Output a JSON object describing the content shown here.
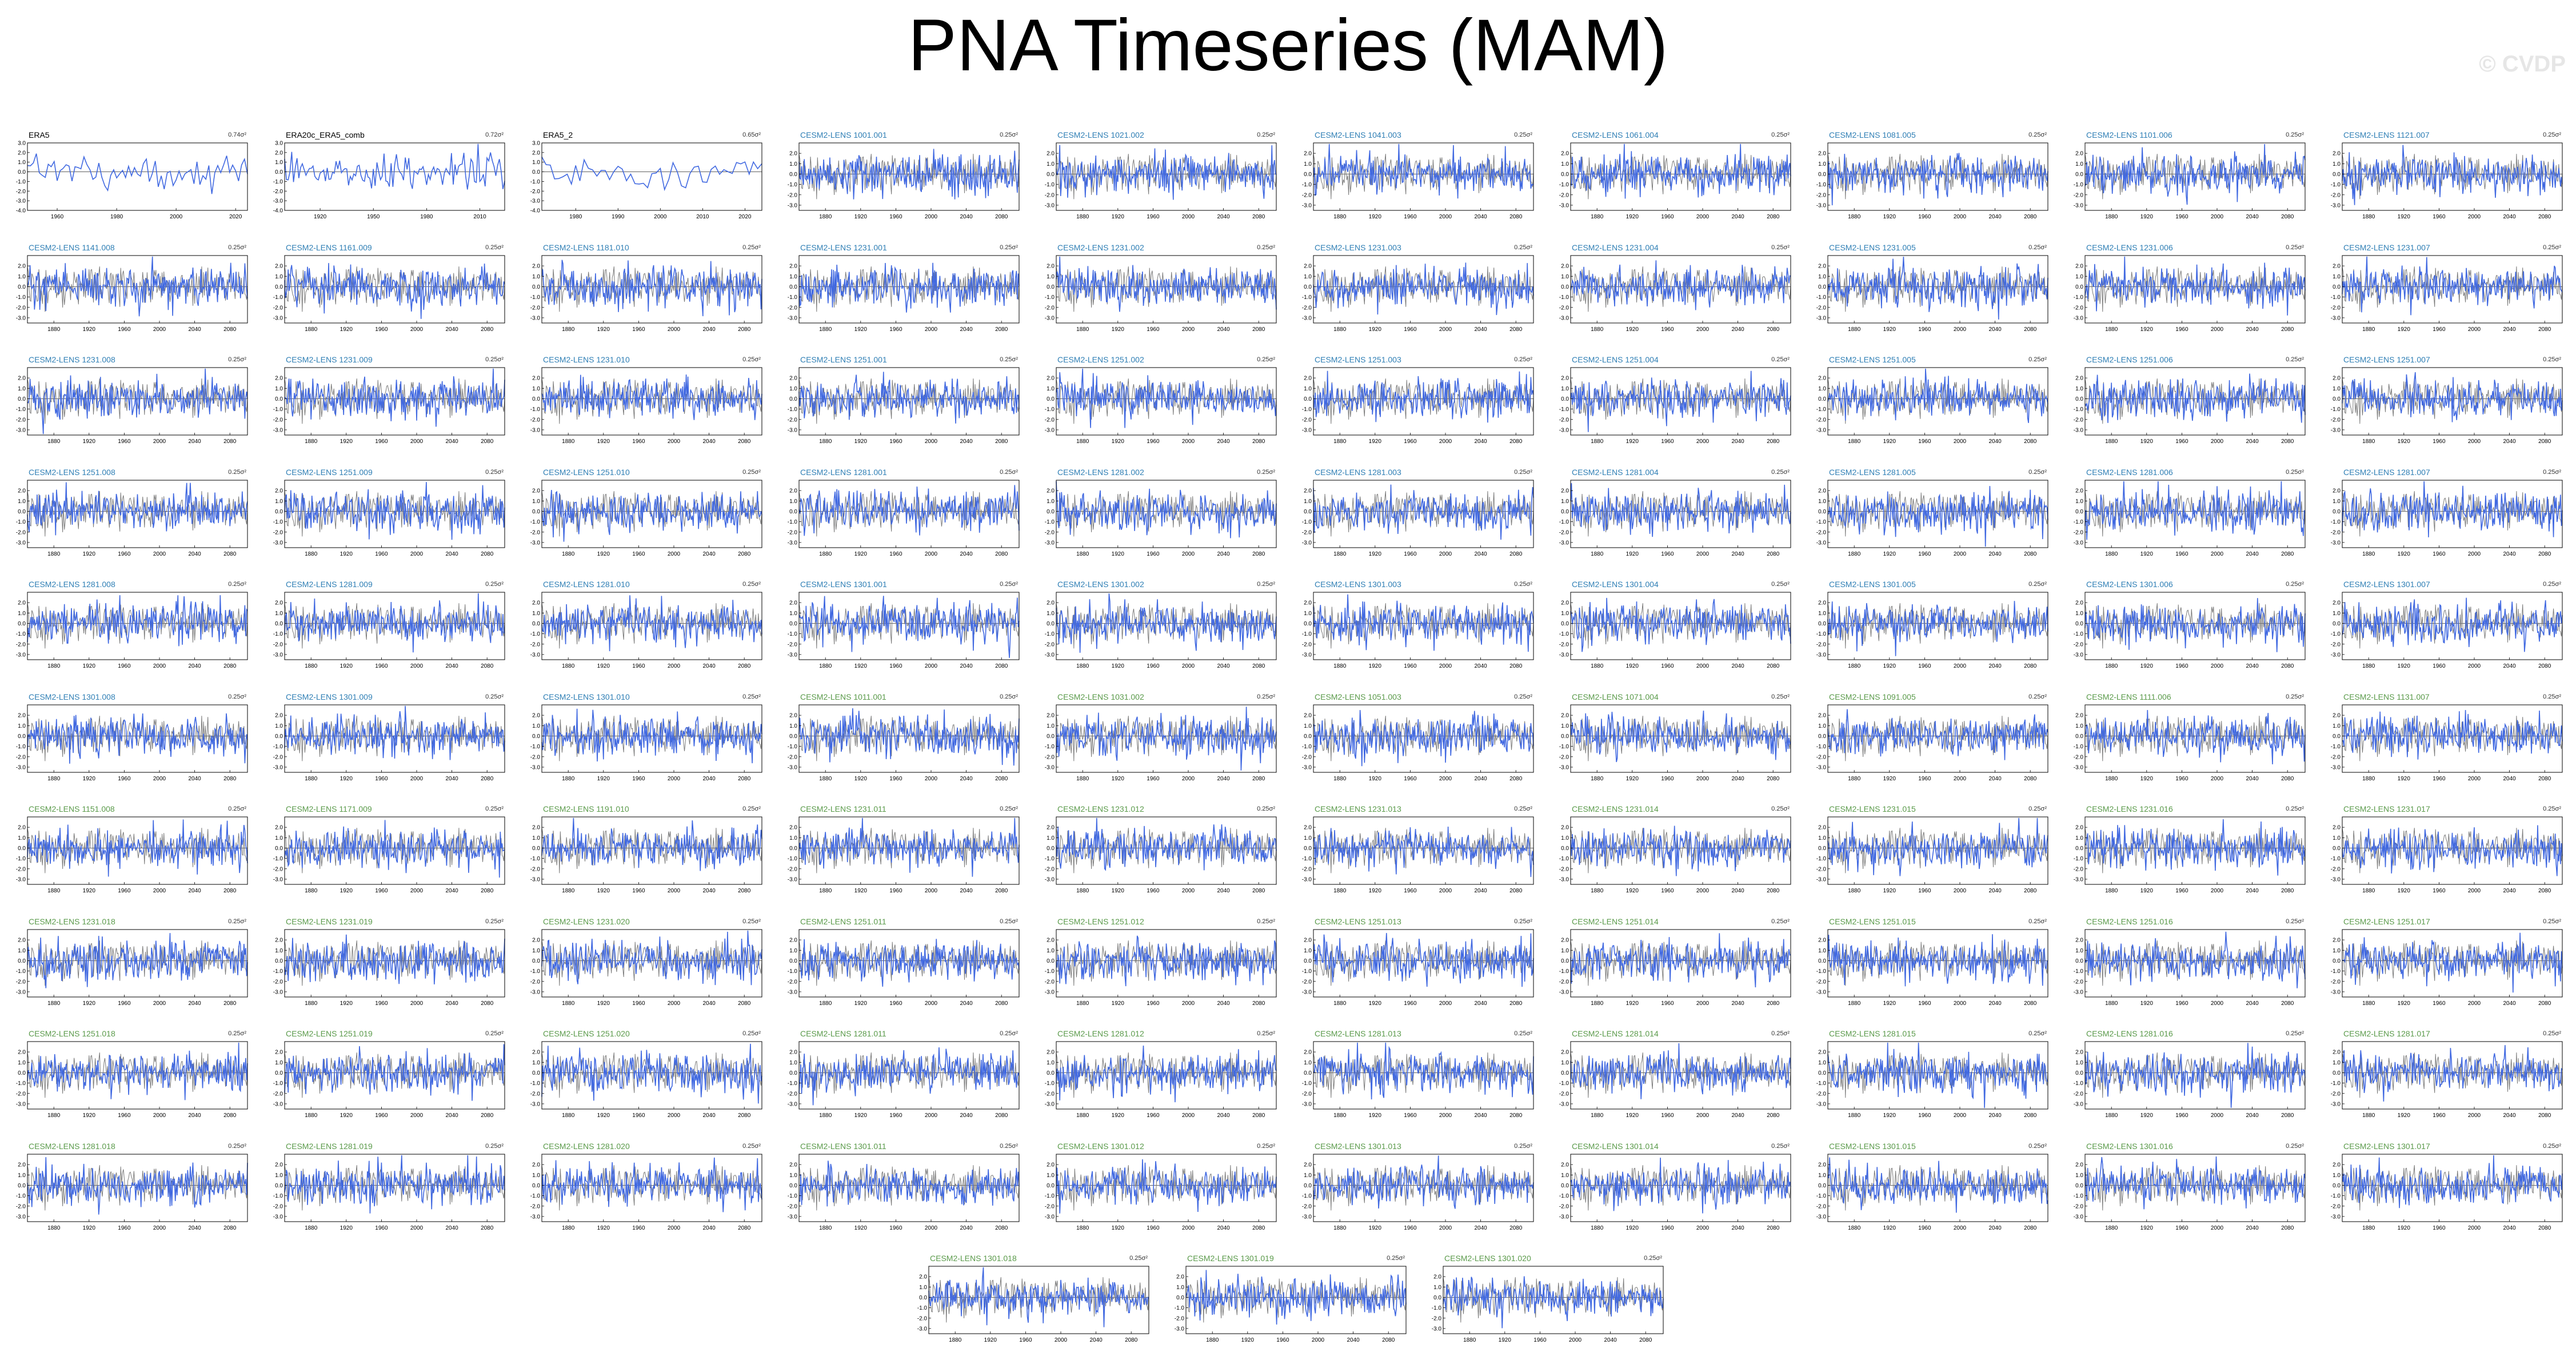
{
  "title": "PNA Timeseries (MAM)",
  "watermark": "© CVDP",
  "colors": {
    "series": "#4169e1",
    "ensemble_mean": "#555555",
    "title_obs": "#000000",
    "title_blue": "#2f7fb5",
    "title_green": "#5a9a4a"
  },
  "chart_data": {
    "type": "line",
    "xlabel": "",
    "ylabel": "",
    "grid": false,
    "legend": "none",
    "obs_ylim": [
      -4,
      3
    ],
    "obs_yticks": [
      "3.0",
      "2.0",
      "1.0",
      "0.0",
      "-1.0",
      "-2.0",
      "-3.0",
      "-4.0"
    ],
    "model_ylim": [
      -3.5,
      3
    ],
    "model_yticks": [
      "2.0",
      "1.0",
      "0.0",
      "-1.0",
      "-2.0",
      "-3.0"
    ],
    "model_xticks": [
      "1880",
      "1920",
      "1960",
      "2000",
      "2040",
      "2080"
    ],
    "model_xrange": [
      1850,
      2100
    ],
    "panels": [
      {
        "label": "ERA5",
        "var": "0.74σ²",
        "kind": "obs",
        "color": "obs",
        "xrange": [
          1950,
          2024
        ],
        "xticks": [
          "1960",
          "1980",
          "2000",
          "2020"
        ],
        "seed": 1
      },
      {
        "label": "ERA20c_ERA5_comb",
        "var": "0.72σ²",
        "kind": "obs",
        "color": "obs",
        "xrange": [
          1900,
          2024
        ],
        "xticks": [
          "1920",
          "1950",
          "1980",
          "2010"
        ],
        "seed": 2
      },
      {
        "label": "ERA5_2",
        "var": "0.65σ²",
        "kind": "obs",
        "color": "obs",
        "xrange": [
          1972,
          2024
        ],
        "xticks": [
          "1980",
          "1990",
          "2000",
          "2010",
          "2020"
        ],
        "seed": 3
      },
      {
        "label": "CESM2-LENS 1001.001",
        "var": "0.25σ²",
        "kind": "model",
        "color": "blue",
        "seed": 4
      },
      {
        "label": "CESM2-LENS 1021.002",
        "var": "0.25σ²",
        "kind": "model",
        "color": "blue",
        "seed": 5
      },
      {
        "label": "CESM2-LENS 1041.003",
        "var": "0.25σ²",
        "kind": "model",
        "color": "blue",
        "seed": 6
      },
      {
        "label": "CESM2-LENS 1061.004",
        "var": "0.25σ²",
        "kind": "model",
        "color": "blue",
        "seed": 7
      },
      {
        "label": "CESM2-LENS 1081.005",
        "var": "0.25σ²",
        "kind": "model",
        "color": "blue",
        "seed": 8
      },
      {
        "label": "CESM2-LENS 1101.006",
        "var": "0.25σ²",
        "kind": "model",
        "color": "blue",
        "seed": 9
      },
      {
        "label": "CESM2-LENS 1121.007",
        "var": "0.25σ²",
        "kind": "model",
        "color": "blue",
        "seed": 10
      },
      {
        "label": "CESM2-LENS 1141.008",
        "var": "0.25σ²",
        "kind": "model",
        "color": "blue",
        "seed": 11
      },
      {
        "label": "CESM2-LENS 1161.009",
        "var": "0.25σ²",
        "kind": "model",
        "color": "blue",
        "seed": 12
      },
      {
        "label": "CESM2-LENS 1181.010",
        "var": "0.25σ²",
        "kind": "model",
        "color": "blue",
        "seed": 13
      },
      {
        "label": "CESM2-LENS 1231.001",
        "var": "0.25σ²",
        "kind": "model",
        "color": "blue",
        "seed": 14
      },
      {
        "label": "CESM2-LENS 1231.002",
        "var": "0.25σ²",
        "kind": "model",
        "color": "blue",
        "seed": 15
      },
      {
        "label": "CESM2-LENS 1231.003",
        "var": "0.25σ²",
        "kind": "model",
        "color": "blue",
        "seed": 16
      },
      {
        "label": "CESM2-LENS 1231.004",
        "var": "0.25σ²",
        "kind": "model",
        "color": "blue",
        "seed": 17
      },
      {
        "label": "CESM2-LENS 1231.005",
        "var": "0.25σ²",
        "kind": "model",
        "color": "blue",
        "seed": 18
      },
      {
        "label": "CESM2-LENS 1231.006",
        "var": "0.25σ²",
        "kind": "model",
        "color": "blue",
        "seed": 19
      },
      {
        "label": "CESM2-LENS 1231.007",
        "var": "0.25σ²",
        "kind": "model",
        "color": "blue",
        "seed": 20
      },
      {
        "label": "CESM2-LENS 1231.008",
        "var": "0.25σ²",
        "kind": "model",
        "color": "blue",
        "seed": 21
      },
      {
        "label": "CESM2-LENS 1231.009",
        "var": "0.25σ²",
        "kind": "model",
        "color": "blue",
        "seed": 22
      },
      {
        "label": "CESM2-LENS 1231.010",
        "var": "0.25σ²",
        "kind": "model",
        "color": "blue",
        "seed": 23
      },
      {
        "label": "CESM2-LENS 1251.001",
        "var": "0.25σ²",
        "kind": "model",
        "color": "blue",
        "seed": 24
      },
      {
        "label": "CESM2-LENS 1251.002",
        "var": "0.25σ²",
        "kind": "model",
        "color": "blue",
        "seed": 25
      },
      {
        "label": "CESM2-LENS 1251.003",
        "var": "0.25σ²",
        "kind": "model",
        "color": "blue",
        "seed": 26
      },
      {
        "label": "CESM2-LENS 1251.004",
        "var": "0.25σ²",
        "kind": "model",
        "color": "blue",
        "seed": 27
      },
      {
        "label": "CESM2-LENS 1251.005",
        "var": "0.25σ²",
        "kind": "model",
        "color": "blue",
        "seed": 28
      },
      {
        "label": "CESM2-LENS 1251.006",
        "var": "0.25σ²",
        "kind": "model",
        "color": "blue",
        "seed": 29
      },
      {
        "label": "CESM2-LENS 1251.007",
        "var": "0.25σ²",
        "kind": "model",
        "color": "blue",
        "seed": 30
      },
      {
        "label": "CESM2-LENS 1251.008",
        "var": "0.25σ²",
        "kind": "model",
        "color": "blue",
        "seed": 31
      },
      {
        "label": "CESM2-LENS 1251.009",
        "var": "0.25σ²",
        "kind": "model",
        "color": "blue",
        "seed": 32
      },
      {
        "label": "CESM2-LENS 1251.010",
        "var": "0.25σ²",
        "kind": "model",
        "color": "blue",
        "seed": 33
      },
      {
        "label": "CESM2-LENS 1281.001",
        "var": "0.25σ²",
        "kind": "model",
        "color": "blue",
        "seed": 34
      },
      {
        "label": "CESM2-LENS 1281.002",
        "var": "0.25σ²",
        "kind": "model",
        "color": "blue",
        "seed": 35
      },
      {
        "label": "CESM2-LENS 1281.003",
        "var": "0.25σ²",
        "kind": "model",
        "color": "blue",
        "seed": 36
      },
      {
        "label": "CESM2-LENS 1281.004",
        "var": "0.25σ²",
        "kind": "model",
        "color": "blue",
        "seed": 37
      },
      {
        "label": "CESM2-LENS 1281.005",
        "var": "0.25σ²",
        "kind": "model",
        "color": "blue",
        "seed": 38
      },
      {
        "label": "CESM2-LENS 1281.006",
        "var": "0.25σ²",
        "kind": "model",
        "color": "blue",
        "seed": 39
      },
      {
        "label": "CESM2-LENS 1281.007",
        "var": "0.25σ²",
        "kind": "model",
        "color": "blue",
        "seed": 40
      },
      {
        "label": "CESM2-LENS 1281.008",
        "var": "0.25σ²",
        "kind": "model",
        "color": "blue",
        "seed": 41
      },
      {
        "label": "CESM2-LENS 1281.009",
        "var": "0.25σ²",
        "kind": "model",
        "color": "blue",
        "seed": 42
      },
      {
        "label": "CESM2-LENS 1281.010",
        "var": "0.25σ²",
        "kind": "model",
        "color": "blue",
        "seed": 43
      },
      {
        "label": "CESM2-LENS 1301.001",
        "var": "0.25σ²",
        "kind": "model",
        "color": "blue",
        "seed": 44
      },
      {
        "label": "CESM2-LENS 1301.002",
        "var": "0.25σ²",
        "kind": "model",
        "color": "blue",
        "seed": 45
      },
      {
        "label": "CESM2-LENS 1301.003",
        "var": "0.25σ²",
        "kind": "model",
        "color": "blue",
        "seed": 46
      },
      {
        "label": "CESM2-LENS 1301.004",
        "var": "0.25σ²",
        "kind": "model",
        "color": "blue",
        "seed": 47
      },
      {
        "label": "CESM2-LENS 1301.005",
        "var": "0.25σ²",
        "kind": "model",
        "color": "blue",
        "seed": 48
      },
      {
        "label": "CESM2-LENS 1301.006",
        "var": "0.25σ²",
        "kind": "model",
        "color": "blue",
        "seed": 49
      },
      {
        "label": "CESM2-LENS 1301.007",
        "var": "0.25σ²",
        "kind": "model",
        "color": "blue",
        "seed": 50
      },
      {
        "label": "CESM2-LENS 1301.008",
        "var": "0.25σ²",
        "kind": "model",
        "color": "blue",
        "seed": 51
      },
      {
        "label": "CESM2-LENS 1301.009",
        "var": "0.25σ²",
        "kind": "model",
        "color": "blue",
        "seed": 52
      },
      {
        "label": "CESM2-LENS 1301.010",
        "var": "0.25σ²",
        "kind": "model",
        "color": "blue",
        "seed": 53
      },
      {
        "label": "CESM2-LENS 1011.001",
        "var": "0.25σ²",
        "kind": "model",
        "color": "green",
        "seed": 54
      },
      {
        "label": "CESM2-LENS 1031.002",
        "var": "0.25σ²",
        "kind": "model",
        "color": "green",
        "seed": 55
      },
      {
        "label": "CESM2-LENS 1051.003",
        "var": "0.25σ²",
        "kind": "model",
        "color": "green",
        "seed": 56
      },
      {
        "label": "CESM2-LENS 1071.004",
        "var": "0.25σ²",
        "kind": "model",
        "color": "green",
        "seed": 57
      },
      {
        "label": "CESM2-LENS 1091.005",
        "var": "0.25σ²",
        "kind": "model",
        "color": "green",
        "seed": 58
      },
      {
        "label": "CESM2-LENS 1111.006",
        "var": "0.25σ²",
        "kind": "model",
        "color": "green",
        "seed": 59
      },
      {
        "label": "CESM2-LENS 1131.007",
        "var": "0.25σ²",
        "kind": "model",
        "color": "green",
        "seed": 60
      },
      {
        "label": "CESM2-LENS 1151.008",
        "var": "0.25σ²",
        "kind": "model",
        "color": "green",
        "seed": 61
      },
      {
        "label": "CESM2-LENS 1171.009",
        "var": "0.25σ²",
        "kind": "model",
        "color": "green",
        "seed": 62
      },
      {
        "label": "CESM2-LENS 1191.010",
        "var": "0.25σ²",
        "kind": "model",
        "color": "green",
        "seed": 63
      },
      {
        "label": "CESM2-LENS 1231.011",
        "var": "0.25σ²",
        "kind": "model",
        "color": "green",
        "seed": 64
      },
      {
        "label": "CESM2-LENS 1231.012",
        "var": "0.25σ²",
        "kind": "model",
        "color": "green",
        "seed": 65
      },
      {
        "label": "CESM2-LENS 1231.013",
        "var": "0.25σ²",
        "kind": "model",
        "color": "green",
        "seed": 66
      },
      {
        "label": "CESM2-LENS 1231.014",
        "var": "0.25σ²",
        "kind": "model",
        "color": "green",
        "seed": 67
      },
      {
        "label": "CESM2-LENS 1231.015",
        "var": "0.25σ²",
        "kind": "model",
        "color": "green",
        "seed": 68
      },
      {
        "label": "CESM2-LENS 1231.016",
        "var": "0.25σ²",
        "kind": "model",
        "color": "green",
        "seed": 69
      },
      {
        "label": "CESM2-LENS 1231.017",
        "var": "0.25σ²",
        "kind": "model",
        "color": "green",
        "seed": 70
      },
      {
        "label": "CESM2-LENS 1231.018",
        "var": "0.25σ²",
        "kind": "model",
        "color": "green",
        "seed": 71
      },
      {
        "label": "CESM2-LENS 1231.019",
        "var": "0.25σ²",
        "kind": "model",
        "color": "green",
        "seed": 72
      },
      {
        "label": "CESM2-LENS 1231.020",
        "var": "0.25σ²",
        "kind": "model",
        "color": "green",
        "seed": 73
      },
      {
        "label": "CESM2-LENS 1251.011",
        "var": "0.25σ²",
        "kind": "model",
        "color": "green",
        "seed": 74
      },
      {
        "label": "CESM2-LENS 1251.012",
        "var": "0.25σ²",
        "kind": "model",
        "color": "green",
        "seed": 75
      },
      {
        "label": "CESM2-LENS 1251.013",
        "var": "0.25σ²",
        "kind": "model",
        "color": "green",
        "seed": 76
      },
      {
        "label": "CESM2-LENS 1251.014",
        "var": "0.25σ²",
        "kind": "model",
        "color": "green",
        "seed": 77
      },
      {
        "label": "CESM2-LENS 1251.015",
        "var": "0.25σ²",
        "kind": "model",
        "color": "green",
        "seed": 78
      },
      {
        "label": "CESM2-LENS 1251.016",
        "var": "0.25σ²",
        "kind": "model",
        "color": "green",
        "seed": 79
      },
      {
        "label": "CESM2-LENS 1251.017",
        "var": "0.25σ²",
        "kind": "model",
        "color": "green",
        "seed": 80
      },
      {
        "label": "CESM2-LENS 1251.018",
        "var": "0.25σ²",
        "kind": "model",
        "color": "green",
        "seed": 81
      },
      {
        "label": "CESM2-LENS 1251.019",
        "var": "0.25σ²",
        "kind": "model",
        "color": "green",
        "seed": 82
      },
      {
        "label": "CESM2-LENS 1251.020",
        "var": "0.25σ²",
        "kind": "model",
        "color": "green",
        "seed": 83
      },
      {
        "label": "CESM2-LENS 1281.011",
        "var": "0.25σ²",
        "kind": "model",
        "color": "green",
        "seed": 84
      },
      {
        "label": "CESM2-LENS 1281.012",
        "var": "0.25σ²",
        "kind": "model",
        "color": "green",
        "seed": 85
      },
      {
        "label": "CESM2-LENS 1281.013",
        "var": "0.25σ²",
        "kind": "model",
        "color": "green",
        "seed": 86
      },
      {
        "label": "CESM2-LENS 1281.014",
        "var": "0.25σ²",
        "kind": "model",
        "color": "green",
        "seed": 87
      },
      {
        "label": "CESM2-LENS 1281.015",
        "var": "0.25σ²",
        "kind": "model",
        "color": "green",
        "seed": 88
      },
      {
        "label": "CESM2-LENS 1281.016",
        "var": "0.25σ²",
        "kind": "model",
        "color": "green",
        "seed": 89
      },
      {
        "label": "CESM2-LENS 1281.017",
        "var": "0.25σ²",
        "kind": "model",
        "color": "green",
        "seed": 90
      },
      {
        "label": "CESM2-LENS 1281.018",
        "var": "0.25σ²",
        "kind": "model",
        "color": "green",
        "seed": 91
      },
      {
        "label": "CESM2-LENS 1281.019",
        "var": "0.25σ²",
        "kind": "model",
        "color": "green",
        "seed": 92
      },
      {
        "label": "CESM2-LENS 1281.020",
        "var": "0.25σ²",
        "kind": "model",
        "color": "green",
        "seed": 93
      },
      {
        "label": "CESM2-LENS 1301.011",
        "var": "0.25σ²",
        "kind": "model",
        "color": "green",
        "seed": 94
      },
      {
        "label": "CESM2-LENS 1301.012",
        "var": "0.25σ²",
        "kind": "model",
        "color": "green",
        "seed": 95
      },
      {
        "label": "CESM2-LENS 1301.013",
        "var": "0.25σ²",
        "kind": "model",
        "color": "green",
        "seed": 96
      },
      {
        "label": "CESM2-LENS 1301.014",
        "var": "0.25σ²",
        "kind": "model",
        "color": "green",
        "seed": 97
      },
      {
        "label": "CESM2-LENS 1301.015",
        "var": "0.25σ²",
        "kind": "model",
        "color": "green",
        "seed": 98
      },
      {
        "label": "CESM2-LENS 1301.016",
        "var": "0.25σ²",
        "kind": "model",
        "color": "green",
        "seed": 99
      },
      {
        "label": "CESM2-LENS 1301.017",
        "var": "0.25σ²",
        "kind": "model",
        "color": "green",
        "seed": 100
      },
      {
        "label": "CESM2-LENS 1301.018",
        "var": "0.25σ²",
        "kind": "model",
        "color": "green",
        "seed": 101
      },
      {
        "label": "CESM2-LENS 1301.019",
        "var": "0.25σ²",
        "kind": "model",
        "color": "green",
        "seed": 102
      },
      {
        "label": "CESM2-LENS 1301.020",
        "var": "0.25σ²",
        "kind": "model",
        "color": "green",
        "seed": 103
      }
    ]
  }
}
